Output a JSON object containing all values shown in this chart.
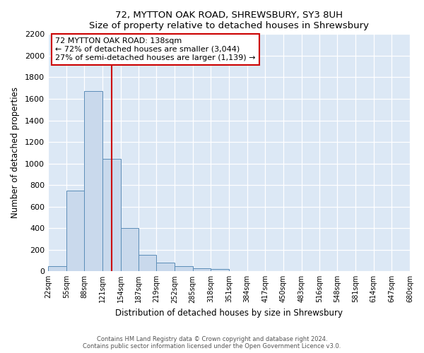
{
  "title": "72, MYTTON OAK ROAD, SHREWSBURY, SY3 8UH",
  "subtitle": "Size of property relative to detached houses in Shrewsbury",
  "xlabel": "Distribution of detached houses by size in Shrewsbury",
  "ylabel": "Number of detached properties",
  "bin_labels": [
    "22sqm",
    "55sqm",
    "88sqm",
    "121sqm",
    "154sqm",
    "187sqm",
    "219sqm",
    "252sqm",
    "285sqm",
    "318sqm",
    "351sqm",
    "384sqm",
    "417sqm",
    "450sqm",
    "483sqm",
    "516sqm",
    "548sqm",
    "581sqm",
    "614sqm",
    "647sqm",
    "680sqm"
  ],
  "bar_values": [
    50,
    750,
    1670,
    1040,
    400,
    150,
    80,
    45,
    30,
    20,
    0,
    0,
    0,
    0,
    0,
    0,
    0,
    0,
    0,
    0
  ],
  "bar_color": "#c9d9ec",
  "bar_edge_color": "#5b8db8",
  "vline_x": 138,
  "vline_color": "#cc0000",
  "ylim": [
    0,
    2200
  ],
  "yticks": [
    0,
    200,
    400,
    600,
    800,
    1000,
    1200,
    1400,
    1600,
    1800,
    2000,
    2200
  ],
  "bin_edges": [
    22,
    55,
    88,
    121,
    154,
    187,
    219,
    252,
    285,
    318,
    351,
    384,
    417,
    450,
    483,
    516,
    548,
    581,
    614,
    647,
    680
  ],
  "annotation_title": "72 MYTTON OAK ROAD: 138sqm",
  "annotation_line1": "← 72% of detached houses are smaller (3,044)",
  "annotation_line2": "27% of semi-detached houses are larger (1,139) →",
  "annotation_box_color": "#ffffff",
  "annotation_box_edge": "#cc0000",
  "footer1": "Contains HM Land Registry data © Crown copyright and database right 2024.",
  "footer2": "Contains public sector information licensed under the Open Government Licence v3.0.",
  "fig_bg_color": "#ffffff",
  "plot_bg_color": "#dce8f5"
}
